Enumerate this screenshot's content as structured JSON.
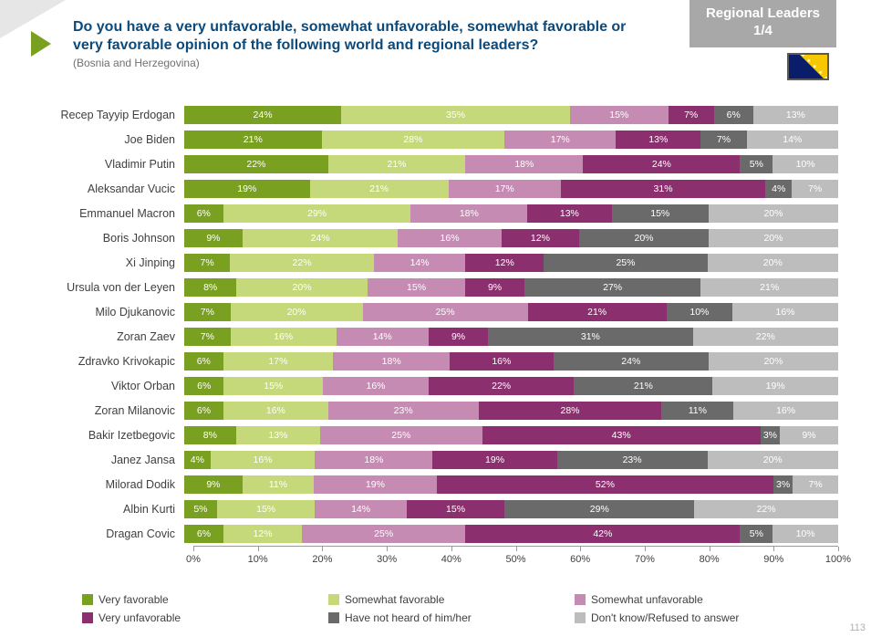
{
  "header": {
    "badge_line1": "Regional Leaders",
    "badge_line2": "1/4",
    "title": "Do you have a very unfavorable, somewhat unfavorable, somewhat favorable or very favorable opinion of the following world and regional leaders?",
    "subtitle": "(Bosnia and Herzegovina)"
  },
  "chart": {
    "type": "stacked-horizontal-bar",
    "xlim": [
      0,
      100
    ],
    "xtick_step": 10,
    "categories": [
      {
        "key": "vf",
        "label": "Very favorable",
        "color": "#7aa021",
        "text": "#ffffff"
      },
      {
        "key": "sf",
        "label": "Somewhat favorable",
        "color": "#c5d87a",
        "text": "#ffffff"
      },
      {
        "key": "su",
        "label": "Somewhat unfavorable",
        "color": "#c58bb2",
        "text": "#ffffff"
      },
      {
        "key": "vu",
        "label": "Very unfavorable",
        "color": "#8b2f6f",
        "text": "#ffffff"
      },
      {
        "key": "nh",
        "label": "Have not heard of him/her",
        "color": "#6a6a6a",
        "text": "#ffffff"
      },
      {
        "key": "dk",
        "label": "Don't know/Refused to answer",
        "color": "#bdbdbd",
        "text": "#ffffff"
      }
    ],
    "rows": [
      {
        "name": "Recep Tayyip Erdogan",
        "values": {
          "vf": 24,
          "sf": 35,
          "su": 15,
          "vu": 7,
          "nh": 6,
          "dk": 13
        }
      },
      {
        "name": "Joe Biden",
        "values": {
          "vf": 21,
          "sf": 28,
          "su": 17,
          "vu": 13,
          "nh": 7,
          "dk": 14
        }
      },
      {
        "name": "Vladimir Putin",
        "values": {
          "vf": 22,
          "sf": 21,
          "su": 18,
          "vu": 24,
          "nh": 5,
          "dk": 10
        }
      },
      {
        "name": "Aleksandar Vucic",
        "values": {
          "vf": 19,
          "sf": 21,
          "su": 17,
          "vu": 31,
          "nh": 4,
          "dk": 7
        }
      },
      {
        "name": "Emmanuel Macron",
        "values": {
          "vf": 6,
          "sf": 29,
          "su": 18,
          "vu": 13,
          "nh": 15,
          "dk": 20
        }
      },
      {
        "name": "Boris Johnson",
        "values": {
          "vf": 9,
          "sf": 24,
          "su": 16,
          "vu": 12,
          "nh": 20,
          "dk": 20
        }
      },
      {
        "name": "Xi Jinping",
        "values": {
          "vf": 7,
          "sf": 22,
          "su": 14,
          "vu": 12,
          "nh": 25,
          "dk": 20
        }
      },
      {
        "name": "Ursula von der Leyen",
        "values": {
          "vf": 8,
          "sf": 20,
          "su": 15,
          "vu": 9,
          "nh": 27,
          "dk": 21
        }
      },
      {
        "name": "Milo Djukanovic",
        "values": {
          "vf": 7,
          "sf": 20,
          "su": 25,
          "vu": 21,
          "nh": 10,
          "dk": 16
        }
      },
      {
        "name": "Zoran Zaev",
        "values": {
          "vf": 7,
          "sf": 16,
          "su": 14,
          "vu": 9,
          "nh": 31,
          "dk": 22
        }
      },
      {
        "name": "Zdravko Krivokapic",
        "values": {
          "vf": 6,
          "sf": 17,
          "su": 18,
          "vu": 16,
          "nh": 24,
          "dk": 20
        }
      },
      {
        "name": "Viktor Orban",
        "values": {
          "vf": 6,
          "sf": 15,
          "su": 16,
          "vu": 22,
          "nh": 21,
          "dk": 19
        }
      },
      {
        "name": "Zoran Milanovic",
        "values": {
          "vf": 6,
          "sf": 16,
          "su": 23,
          "vu": 28,
          "nh": 11,
          "dk": 16
        }
      },
      {
        "name": "Bakir Izetbegovic",
        "values": {
          "vf": 8,
          "sf": 13,
          "su": 25,
          "vu": 43,
          "nh": 3,
          "dk": 9
        }
      },
      {
        "name": "Janez Jansa",
        "values": {
          "vf": 4,
          "sf": 16,
          "su": 18,
          "vu": 19,
          "nh": 23,
          "dk": 20
        }
      },
      {
        "name": "Milorad Dodik",
        "values": {
          "vf": 9,
          "sf": 11,
          "su": 19,
          "vu": 52,
          "nh": 3,
          "dk": 7
        }
      },
      {
        "name": "Albin Kurti",
        "values": {
          "vf": 5,
          "sf": 15,
          "su": 14,
          "vu": 15,
          "nh": 29,
          "dk": 22
        }
      },
      {
        "name": "Dragan Covic",
        "values": {
          "vf": 6,
          "sf": 12,
          "su": 25,
          "vu": 42,
          "nh": 5,
          "dk": 10
        }
      }
    ],
    "axis_suffix": "%",
    "label_fontsize": 12,
    "value_fontsize": 10.5,
    "background_color": "#ffffff",
    "axis_color": "#9a9a9a"
  },
  "page_number": "113"
}
